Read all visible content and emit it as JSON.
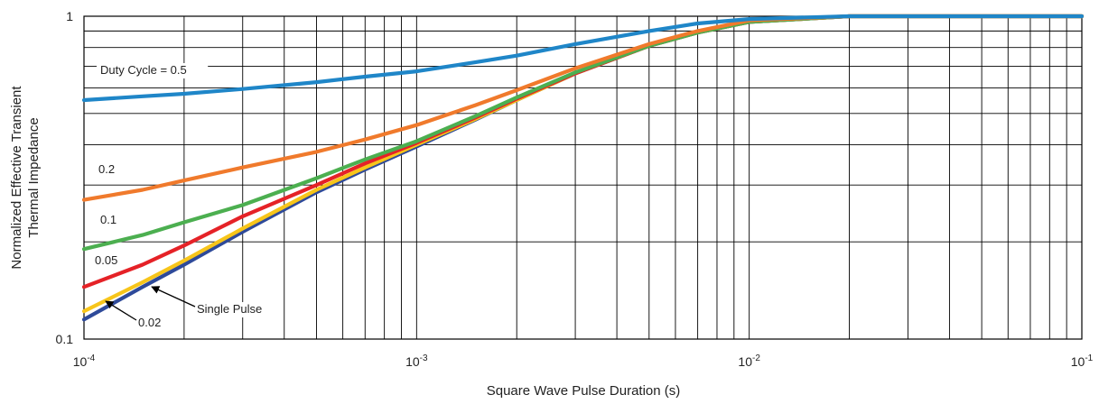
{
  "chart_data": {
    "type": "line",
    "title": "",
    "xlabel": "Square Wave Pulse Duration (s)",
    "ylabel_lines": [
      "Normalized Effective Transient",
      "Thermal Impedance"
    ],
    "x_scale": "log",
    "y_scale": "log",
    "xlim": [
      0.0001,
      0.1
    ],
    "ylim": [
      0.1,
      1
    ],
    "grid": true,
    "legend": "inline labels",
    "x_ticks": [
      {
        "value": 0.0001,
        "base": "10",
        "exp": "-4"
      },
      {
        "value": 0.001,
        "base": "10",
        "exp": "-3"
      },
      {
        "value": 0.01,
        "base": "10",
        "exp": "-2"
      },
      {
        "value": 0.1,
        "base": "10",
        "exp": "-1"
      }
    ],
    "y_ticks": [
      {
        "value": 0.1,
        "label": "0.1"
      },
      {
        "value": 1,
        "label": "1"
      }
    ],
    "series": [
      {
        "label": "Duty Cycle = 0.5",
        "color": "#1f86c8",
        "x": [
          0.0001,
          0.00015,
          0.0002,
          0.0003,
          0.0005,
          0.0007,
          0.001,
          0.0015,
          0.002,
          0.003,
          0.005,
          0.007,
          0.01,
          0.02,
          0.05,
          0.1
        ],
        "y": [
          0.55,
          0.565,
          0.575,
          0.595,
          0.625,
          0.65,
          0.675,
          0.72,
          0.755,
          0.82,
          0.9,
          0.95,
          0.98,
          1.0,
          1.0,
          1.0
        ]
      },
      {
        "label": "0.2",
        "color": "#f07a2c",
        "x": [
          0.0001,
          0.00015,
          0.0002,
          0.0003,
          0.0005,
          0.0007,
          0.001,
          0.0015,
          0.002,
          0.003,
          0.005,
          0.007,
          0.01,
          0.02,
          0.05,
          0.1
        ],
        "y": [
          0.27,
          0.29,
          0.31,
          0.34,
          0.38,
          0.415,
          0.46,
          0.53,
          0.59,
          0.69,
          0.82,
          0.9,
          0.97,
          1.0,
          1.0,
          1.0
        ]
      },
      {
        "label": "0.1",
        "color": "#4caf50",
        "x": [
          0.0001,
          0.00015,
          0.0002,
          0.0003,
          0.0005,
          0.0007,
          0.001,
          0.0015,
          0.002,
          0.003,
          0.005,
          0.007,
          0.01,
          0.02,
          0.05,
          0.1
        ],
        "y": [
          0.19,
          0.21,
          0.23,
          0.26,
          0.315,
          0.36,
          0.41,
          0.49,
          0.56,
          0.67,
          0.81,
          0.89,
          0.96,
          1.0,
          1.0,
          1.0
        ]
      },
      {
        "label": "0.05",
        "color": "#e52227",
        "x": [
          0.0001,
          0.00015,
          0.0002,
          0.0003,
          0.0005,
          0.0007,
          0.001,
          0.0015,
          0.002,
          0.003,
          0.005,
          0.007,
          0.01,
          0.02,
          0.05,
          0.1
        ],
        "y": [
          0.145,
          0.17,
          0.195,
          0.24,
          0.3,
          0.35,
          0.405,
          0.485,
          0.555,
          0.665,
          0.81,
          0.89,
          0.96,
          1.0,
          1.0,
          1.0
        ]
      },
      {
        "label": "0.02",
        "color": "#f7c51a",
        "x": [
          0.0001,
          0.00015,
          0.0002,
          0.0003,
          0.0005,
          0.0007,
          0.001,
          0.0015,
          0.002,
          0.003,
          0.005,
          0.007,
          0.01,
          0.02,
          0.05,
          0.1
        ],
        "y": [
          0.122,
          0.15,
          0.175,
          0.22,
          0.29,
          0.34,
          0.4,
          0.48,
          0.55,
          0.665,
          0.81,
          0.89,
          0.96,
          1.0,
          1.0,
          1.0
        ]
      },
      {
        "label": "Single Pulse",
        "color": "#2e4a9a",
        "x": [
          0.0001,
          0.00015,
          0.0002,
          0.0003,
          0.0005,
          0.0007,
          0.001,
          0.0015,
          0.002,
          0.003,
          0.005,
          0.007,
          0.01,
          0.02,
          0.05,
          0.1
        ],
        "y": [
          0.115,
          0.145,
          0.17,
          0.215,
          0.285,
          0.335,
          0.395,
          0.478,
          0.55,
          0.665,
          0.81,
          0.89,
          0.96,
          1.0,
          1.0,
          1.0
        ]
      }
    ]
  }
}
